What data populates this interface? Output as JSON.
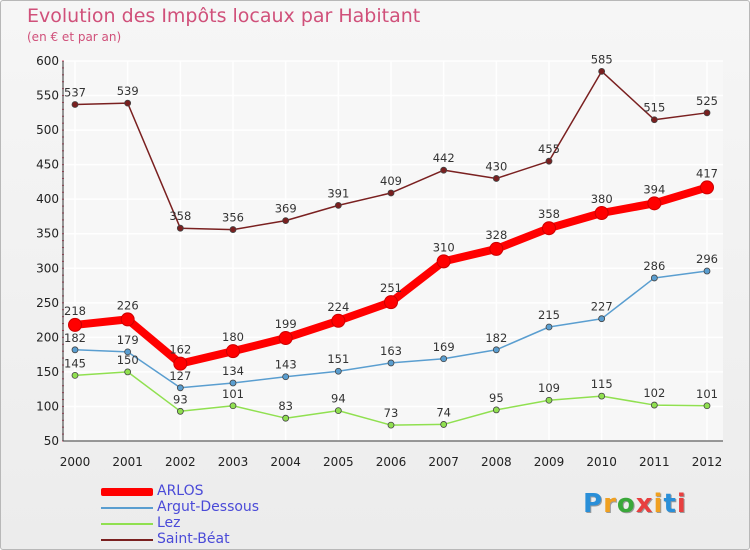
{
  "title": "Evolution des Impôts locaux par Habitant",
  "subtitle": "(en € et par an)",
  "logo": {
    "text": "Proxiti",
    "colors": [
      "#2a8fd8",
      "#f0a020",
      "#3aa83a",
      "#e84040",
      "#f0a020",
      "#2a8fd8",
      "#e84040"
    ]
  },
  "chart_data": {
    "type": "line",
    "title": "Evolution des Impôts locaux par Habitant",
    "subtitle": "(en € et par an)",
    "xlabel": "",
    "ylabel": "",
    "ylim": [
      50,
      600
    ],
    "yticks": [
      50,
      100,
      150,
      200,
      250,
      300,
      350,
      400,
      450,
      500,
      550,
      600
    ],
    "categories": [
      "2000",
      "2001",
      "2002",
      "2003",
      "2004",
      "2005",
      "2006",
      "2007",
      "2008",
      "2009",
      "2010",
      "2011",
      "2012"
    ],
    "series": [
      {
        "name": "Saint-Béat",
        "color": "#7a2020",
        "values": [
          537,
          539,
          358,
          356,
          369,
          391,
          409,
          442,
          430,
          455,
          585,
          515,
          525
        ]
      },
      {
        "name": "Lez",
        "color": "#90e050",
        "values": [
          145,
          150,
          93,
          101,
          83,
          94,
          73,
          74,
          95,
          109,
          115,
          102,
          101
        ]
      },
      {
        "name": "Argut-Dessous",
        "color": "#5a9ed0",
        "values": [
          182,
          179,
          127,
          134,
          143,
          151,
          163,
          169,
          182,
          215,
          227,
          286,
          296
        ]
      },
      {
        "name": "ARLOS",
        "color": "#ff0000",
        "values": [
          218,
          226,
          162,
          180,
          199,
          224,
          251,
          310,
          328,
          358,
          380,
          394,
          417
        ]
      }
    ],
    "legend": [
      "ARLOS",
      "Argut-Dessous",
      "Lez",
      "Saint-Béat"
    ],
    "legend_position": "bottom-left"
  }
}
